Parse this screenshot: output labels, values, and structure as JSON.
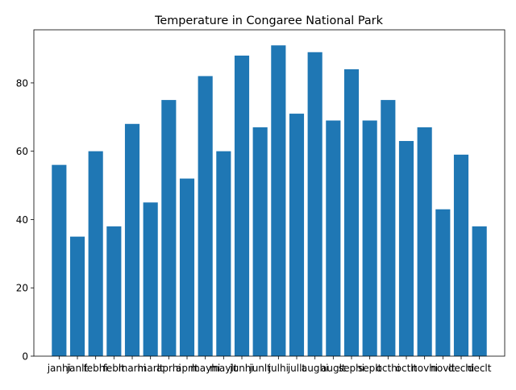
{
  "chart_data": {
    "type": "bar",
    "title": "Temperature in Congaree National Park",
    "xlabel": "",
    "ylabel": "",
    "categories": [
      "janhi",
      "janlt",
      "febhi",
      "feblt",
      "marhi",
      "marlt",
      "aprhi",
      "aprlt",
      "mayhi",
      "maylt",
      "junhi",
      "junlt",
      "julhi",
      "jullt",
      "aughi",
      "auglt",
      "sephi",
      "seplt",
      "octhi",
      "octlt",
      "novhi",
      "novlt",
      "dechi",
      "declt"
    ],
    "values": [
      56,
      35,
      60,
      38,
      68,
      45,
      75,
      52,
      82,
      60,
      88,
      67,
      91,
      71,
      89,
      69,
      84,
      69,
      75,
      63,
      67,
      43,
      59,
      38
    ],
    "ylim": [
      0,
      95.55
    ],
    "yticks": [
      0,
      20,
      40,
      60,
      80
    ],
    "bar_color": "#1f77b4",
    "grid": false,
    "legend": "none"
  }
}
